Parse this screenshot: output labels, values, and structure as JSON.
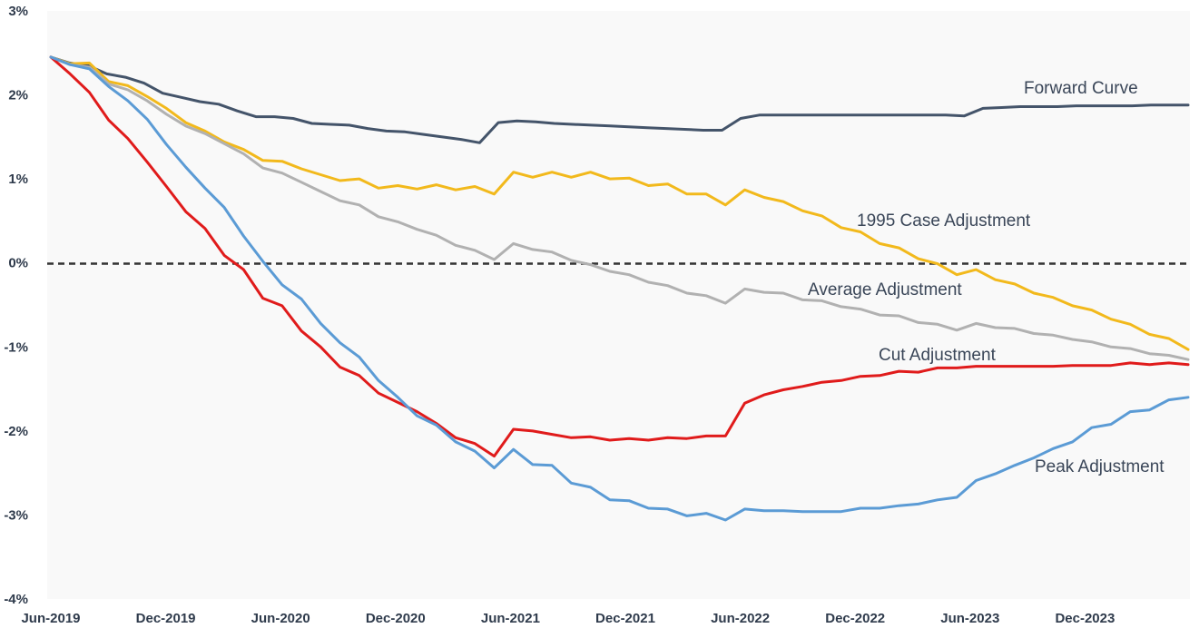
{
  "chart_data": {
    "type": "line",
    "title": "",
    "xlabel": "",
    "ylabel": "",
    "x_tick_labels": [
      "Jun-2019",
      "Dec-2019",
      "Jun-2020",
      "Dec-2020",
      "Jun-2021",
      "Dec-2021",
      "Jun-2022",
      "Dec-2022",
      "Jun-2023",
      "Dec-2023"
    ],
    "x_start": "Jun-2019",
    "x_end": "Sep-2024",
    "y_tick_labels": [
      "3%",
      "2%",
      "1%",
      "0%",
      "-1%",
      "-2%",
      "-3%",
      "-4%"
    ],
    "ylim": [
      -4,
      3
    ],
    "y_unit": "%",
    "grid": false,
    "plot_background": "#f9f9f9",
    "reference_line": {
      "value": 0,
      "style": "dashed",
      "color": "#333333"
    },
    "legend": "none (labels placed next to lines)",
    "series": [
      {
        "name": "Forward Curve",
        "color": "#44546a",
        "values": [
          2.45,
          2.38,
          2.35,
          2.25,
          2.21,
          2.14,
          2.02,
          1.97,
          1.92,
          1.89,
          1.81,
          1.74,
          1.74,
          1.72,
          1.66,
          1.65,
          1.64,
          1.6,
          1.57,
          1.56,
          1.53,
          1.5,
          1.47,
          1.43,
          1.67,
          1.69,
          1.68,
          1.66,
          1.65,
          1.64,
          1.63,
          1.62,
          1.61,
          1.6,
          1.59,
          1.58,
          1.58,
          1.72,
          1.76,
          1.76,
          1.76,
          1.76,
          1.76,
          1.76,
          1.76,
          1.76,
          1.76,
          1.76,
          1.76,
          1.75,
          1.84,
          1.85,
          1.86,
          1.86,
          1.86,
          1.87,
          1.87,
          1.87,
          1.87,
          1.88,
          1.88,
          1.88
        ]
      },
      {
        "name": "1995 Case Adjustment",
        "color": "#f2b91c",
        "values": [
          2.45,
          2.37,
          2.38,
          2.16,
          2.11,
          1.98,
          1.84,
          1.67,
          1.57,
          1.44,
          1.35,
          1.22,
          1.21,
          1.12,
          1.05,
          0.98,
          1.0,
          0.89,
          0.92,
          0.88,
          0.93,
          0.87,
          0.91,
          0.82,
          1.08,
          1.02,
          1.08,
          1.02,
          1.08,
          1.0,
          1.01,
          0.92,
          0.94,
          0.82,
          0.82,
          0.69,
          0.87,
          0.78,
          0.73,
          0.62,
          0.56,
          0.42,
          0.37,
          0.23,
          0.18,
          0.05,
          -0.01,
          -0.14,
          -0.08,
          -0.2,
          -0.25,
          -0.36,
          -0.41,
          -0.51,
          -0.56,
          -0.67,
          -0.73,
          -0.85,
          -0.9,
          -1.03
        ]
      },
      {
        "name": "Average Adjustment",
        "color": "#b1b1b1",
        "values": [
          2.45,
          2.36,
          2.33,
          2.13,
          2.06,
          1.93,
          1.77,
          1.63,
          1.54,
          1.42,
          1.3,
          1.13,
          1.07,
          0.96,
          0.85,
          0.74,
          0.69,
          0.55,
          0.49,
          0.4,
          0.33,
          0.21,
          0.15,
          0.04,
          0.23,
          0.16,
          0.13,
          0.03,
          -0.02,
          -0.1,
          -0.14,
          -0.23,
          -0.27,
          -0.36,
          -0.39,
          -0.48,
          -0.31,
          -0.35,
          -0.36,
          -0.44,
          -0.45,
          -0.52,
          -0.55,
          -0.62,
          -0.63,
          -0.71,
          -0.73,
          -0.8,
          -0.72,
          -0.77,
          -0.78,
          -0.84,
          -0.86,
          -0.91,
          -0.94,
          -1.0,
          -1.02,
          -1.08,
          -1.1,
          -1.15
        ]
      },
      {
        "name": "Cut Adjustment",
        "color": "#e01b1b",
        "values": [
          2.45,
          2.25,
          2.03,
          1.7,
          1.48,
          1.2,
          0.91,
          0.61,
          0.41,
          0.09,
          -0.08,
          -0.42,
          -0.51,
          -0.81,
          -1.0,
          -1.24,
          -1.34,
          -1.55,
          -1.66,
          -1.77,
          -1.91,
          -2.08,
          -2.15,
          -2.3,
          -1.98,
          -2.0,
          -2.04,
          -2.08,
          -2.07,
          -2.11,
          -2.09,
          -2.11,
          -2.08,
          -2.09,
          -2.06,
          -2.06,
          -1.67,
          -1.57,
          -1.51,
          -1.47,
          -1.42,
          -1.4,
          -1.35,
          -1.34,
          -1.29,
          -1.3,
          -1.25,
          -1.25,
          -1.23,
          -1.23,
          -1.23,
          -1.23,
          -1.23,
          -1.22,
          -1.22,
          -1.22,
          -1.19,
          -1.21,
          -1.19,
          -1.21
        ]
      },
      {
        "name": "Peak Adjustment",
        "color": "#5b9bd5",
        "values": [
          2.45,
          2.36,
          2.31,
          2.1,
          1.93,
          1.71,
          1.41,
          1.14,
          0.89,
          0.66,
          0.32,
          0.02,
          -0.26,
          -0.43,
          -0.72,
          -0.95,
          -1.12,
          -1.4,
          -1.6,
          -1.82,
          -1.93,
          -2.13,
          -2.24,
          -2.44,
          -2.22,
          -2.4,
          -2.41,
          -2.62,
          -2.67,
          -2.82,
          -2.83,
          -2.92,
          -2.93,
          -3.01,
          -2.98,
          -3.06,
          -2.93,
          -2.95,
          -2.95,
          -2.96,
          -2.96,
          -2.96,
          -2.92,
          -2.92,
          -2.89,
          -2.87,
          -2.82,
          -2.79,
          -2.59,
          -2.51,
          -2.41,
          -2.32,
          -2.21,
          -2.13,
          -1.96,
          -1.92,
          -1.77,
          -1.75,
          -1.63,
          -1.6
        ]
      }
    ]
  }
}
